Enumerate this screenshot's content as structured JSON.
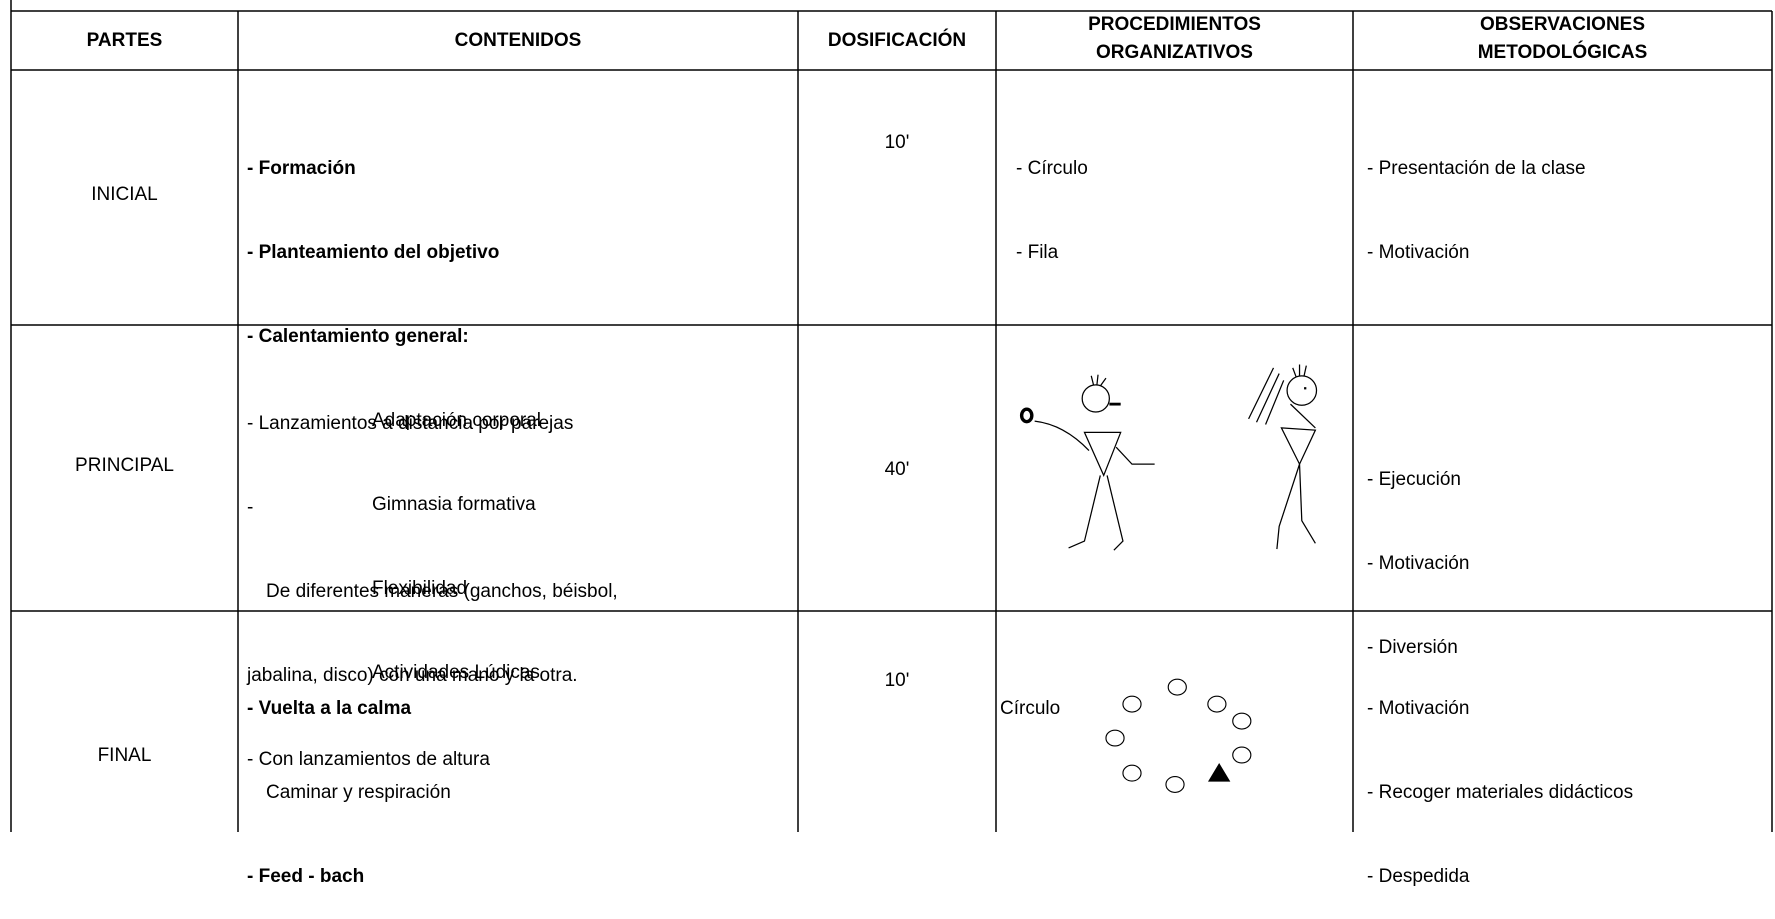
{
  "table": {
    "headers": [
      "PARTES",
      "CONTENIDOS",
      "DOSIFICACIÓN",
      "PROCEDIMIENTOS\nORGANIZATIVOS",
      "OBSERVACIONES\nMETODOLÓGICAS"
    ],
    "rows": [
      {
        "parte": "INICIAL",
        "contenidos": [
          "- Formación",
          "- Planteamiento del objetivo",
          "- Calentamiento general:",
          "Adaptación corporal",
          "Gimnasia formativa",
          "Flexibilidad",
          "Actividades Lúdicas"
        ],
        "dosificacion": "10'",
        "procedimientos": [
          "- Círculo",
          "- Fila"
        ],
        "observaciones": [
          "- Presentación de la clase",
          "- Motivación"
        ]
      },
      {
        "parte": "PRINCIPAL",
        "contenidos": [
          "- Lanzamientos a distancia por parejas",
          "-",
          "De diferentes maneras (ganchos, béisbol,",
          "jabalina, disco) con una mano y la otra.",
          "- Con lanzamientos de altura"
        ],
        "dosificacion": "40'",
        "observaciones": [
          "- Ejecución",
          "- Motivación",
          "- Diversión"
        ]
      },
      {
        "parte": "FINAL",
        "contenidos": [
          "- Vuelta a la calma",
          "Caminar y respiración",
          "- Feed - bach"
        ],
        "dosificacion": "10'",
        "procedimientos": [
          "Círculo"
        ],
        "observaciones": [
          "- Motivación",
          "- Recoger materiales didácticos",
          "- Despedida"
        ]
      }
    ]
  }
}
